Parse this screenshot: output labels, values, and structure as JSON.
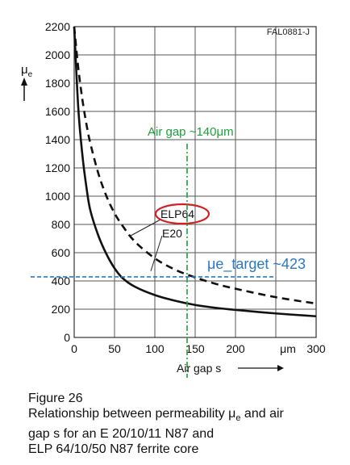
{
  "chart_data": {
    "type": "line",
    "figure_code": "FAL0881-J",
    "ylabel": {
      "symbol": "μ",
      "subscript": "e"
    },
    "xlabel": "Air gap s",
    "x_unit_label": "μm",
    "xlim": [
      0,
      300
    ],
    "ylim": [
      0,
      2200
    ],
    "x_ticks": [
      0,
      50,
      100,
      150,
      200,
      300
    ],
    "y_ticks": [
      0,
      200,
      400,
      600,
      800,
      1000,
      1200,
      1400,
      1600,
      1800,
      2000,
      2200
    ],
    "grid": true,
    "series": [
      {
        "name": "ELP64",
        "style": "dashed",
        "color": "#111111",
        "x": [
          0,
          5,
          10,
          15,
          20,
          30,
          40,
          50,
          60,
          75,
          100,
          125,
          150,
          175,
          200,
          250,
          300
        ],
        "y": [
          2200,
          1910,
          1690,
          1515,
          1375,
          1160,
          1000,
          880,
          790,
          680,
          560,
          480,
          425,
          380,
          345,
          285,
          240
        ]
      },
      {
        "name": "E20",
        "style": "solid",
        "color": "#111111",
        "x": [
          0,
          5,
          10,
          15,
          20,
          30,
          40,
          50,
          60,
          75,
          100,
          125,
          150,
          175,
          200,
          250,
          300
        ],
        "y": [
          2200,
          1630,
          1300,
          1070,
          900,
          720,
          590,
          490,
          420,
          360,
          300,
          260,
          230,
          210,
          195,
          170,
          150
        ]
      }
    ],
    "annotations": [
      {
        "text": "Air gap ~140μm",
        "kind": "vertical",
        "x": 140,
        "color": "#1aa23a"
      },
      {
        "text": "μe_target ~423",
        "kind": "horizontal",
        "y": 423,
        "color": "#2a78c6"
      }
    ],
    "highlight_color": "#d42020"
  },
  "caption": {
    "line1": "Figure 26",
    "line2_pre": "Relationship between permeability μ",
    "line2_sub": "e",
    "line2_post": " and air",
    "line3": "gap s for an E 20/10/11 N87 and",
    "line4": "ELP 64/10/50 N87 ferrite core"
  }
}
